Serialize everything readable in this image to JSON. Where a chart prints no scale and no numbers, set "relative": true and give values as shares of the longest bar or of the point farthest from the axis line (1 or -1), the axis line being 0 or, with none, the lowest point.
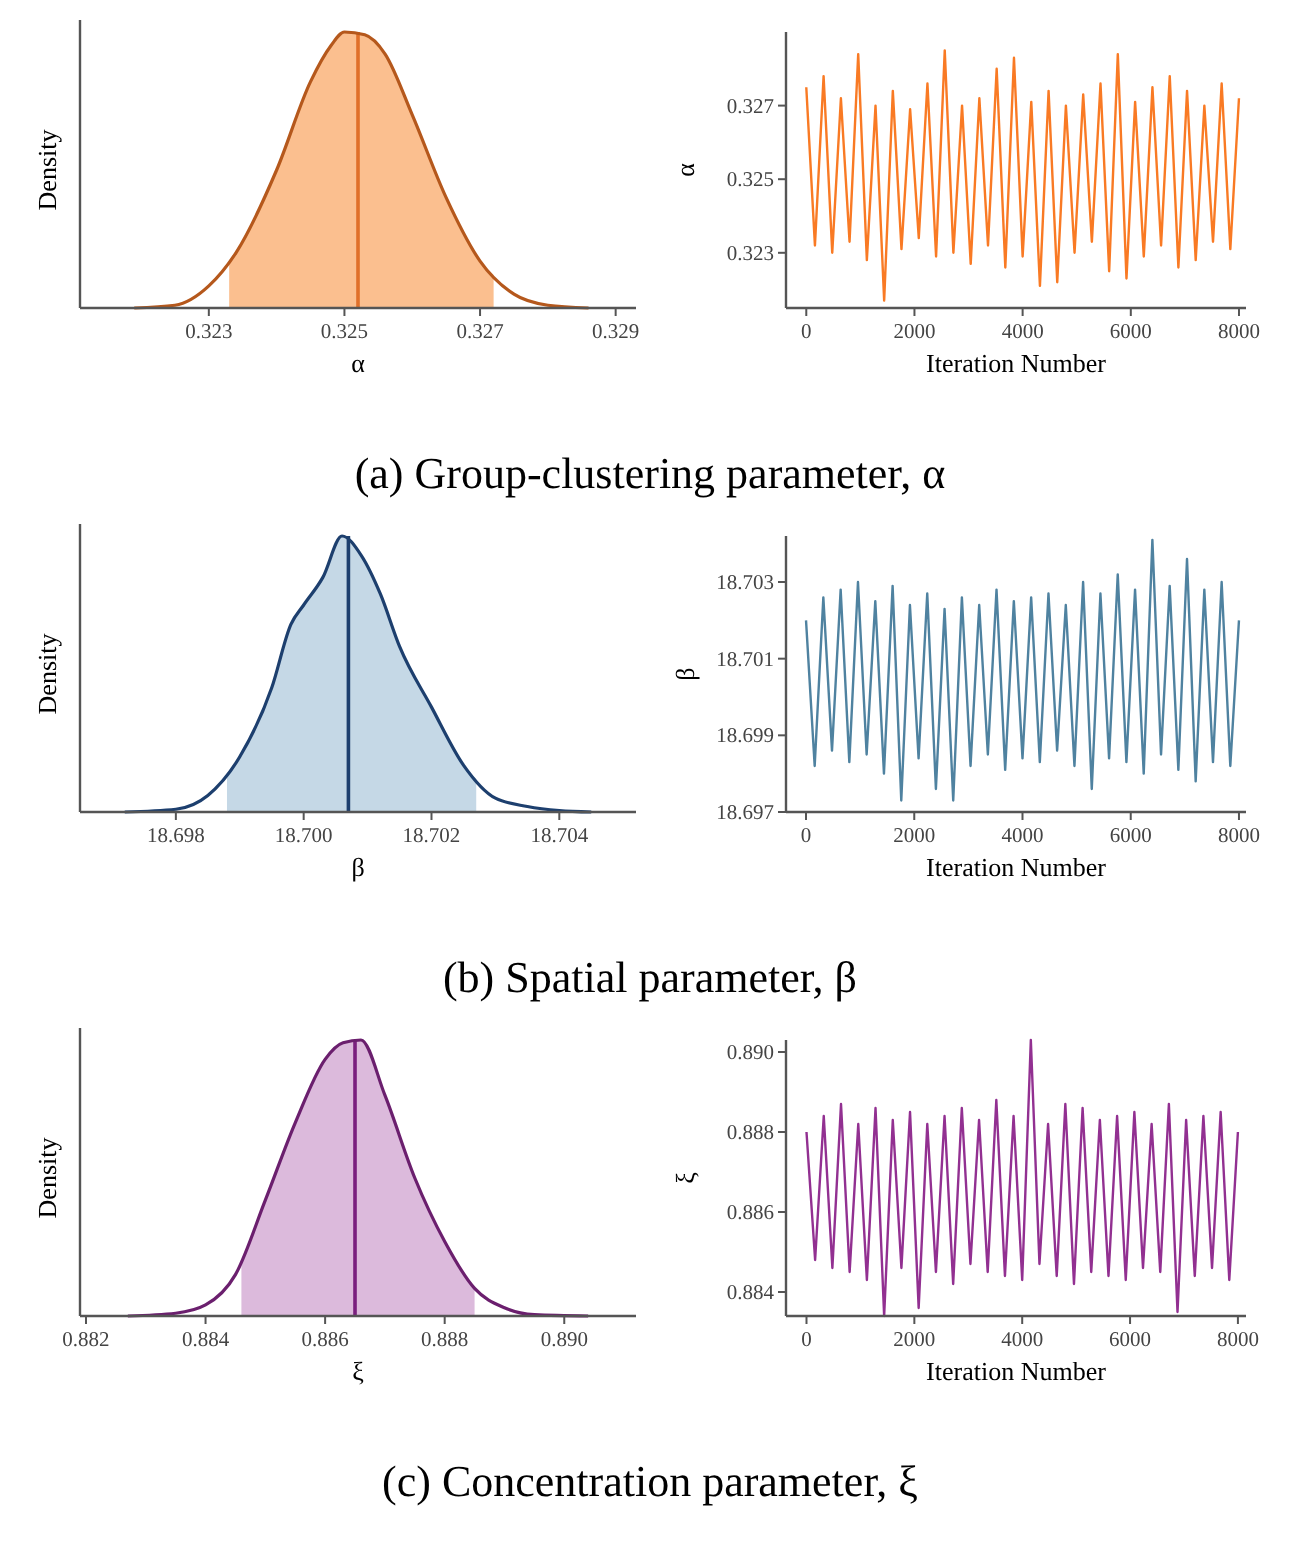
{
  "chart_data": [
    {
      "type": "area",
      "x": [
        0.3219,
        0.3225,
        0.323,
        0.3234,
        0.324,
        0.3245,
        0.3248,
        0.325,
        0.3253,
        0.3256,
        0.326,
        0.3265,
        0.327,
        0.3275,
        0.328,
        0.3286
      ],
      "series": [
        {
          "type": "area",
          "color": "#fbbf8f",
          "x": [
            0.3233,
            0.3234,
            0.324,
            0.3245,
            0.3248,
            0.325,
            0.3253,
            0.3256,
            0.326,
            0.3265,
            0.327,
            0.3272
          ],
          "values": [
            0.17,
            0.2,
            0.5,
            0.82,
            0.95,
            1,
            0.99,
            0.92,
            0.7,
            0.4,
            0.17,
            0.12
          ]
        },
        {
          "type": "line",
          "color": "#b5581c",
          "values": [
            0,
            0.01,
            0.08,
            0.2,
            0.5,
            0.82,
            0.95,
            1,
            0.99,
            0.92,
            0.7,
            0.4,
            0.17,
            0.05,
            0.01,
            0
          ]
        }
      ],
      "relative": true,
      "xlim": [
        0.3211,
        0.3293
      ],
      "xticks": [
        0.323,
        0.325,
        0.327,
        0.329
      ],
      "xlabel": "α",
      "ylabel": "Density",
      "ref_lines": [
        {
          "axis": "x",
          "value": 0.3252,
          "color": "#e0702a"
        }
      ],
      "annotations": [
        "(a) Group-clustering parameter, α"
      ]
    },
    {
      "type": "line",
      "x": [
        0,
        160,
        320,
        480,
        640,
        800,
        960,
        1120,
        1280,
        1440,
        1600,
        1760,
        1920,
        2080,
        2240,
        2400,
        2560,
        2720,
        2880,
        3040,
        3200,
        3360,
        3520,
        3680,
        3840,
        4000,
        4160,
        4320,
        4480,
        4640,
        4800,
        4960,
        5120,
        5280,
        5440,
        5600,
        5760,
        5920,
        6080,
        6240,
        6400,
        6560,
        6720,
        6880,
        7040,
        7200,
        7360,
        7520,
        7680,
        7840,
        8000
      ],
      "series": [
        {
          "color": "#f97a24",
          "values": [
            0.3275,
            0.3232,
            0.3278,
            0.323,
            0.3272,
            0.3233,
            0.3284,
            0.3228,
            0.327,
            0.3217,
            0.3274,
            0.3231,
            0.3269,
            0.3234,
            0.3276,
            0.3229,
            0.3285,
            0.323,
            0.327,
            0.3227,
            0.3272,
            0.3232,
            0.328,
            0.3226,
            0.3283,
            0.3229,
            0.3271,
            0.3221,
            0.3274,
            0.3222,
            0.327,
            0.323,
            0.3273,
            0.3233,
            0.3276,
            0.3225,
            0.3284,
            0.3223,
            0.3271,
            0.3229,
            0.3275,
            0.3232,
            0.3278,
            0.3226,
            0.3274,
            0.3228,
            0.327,
            0.3233,
            0.3276,
            0.3231,
            0.3272
          ]
        }
      ],
      "xlim": [
        -375,
        8130
      ],
      "xticks": [
        0,
        2000,
        4000,
        6000,
        8000
      ],
      "ylim": [
        0.3215,
        0.329
      ],
      "yticks": [
        0.323,
        0.325,
        0.327
      ],
      "xlabel": "Iteration Number",
      "ylabel": "α"
    },
    {
      "type": "area",
      "x": [
        18.6972,
        18.698,
        18.6985,
        18.699,
        18.6995,
        18.6998,
        18.7,
        18.7003,
        18.7006,
        18.7009,
        18.7012,
        18.7015,
        18.702,
        18.7025,
        18.703,
        18.7035,
        18.704,
        18.7045
      ],
      "series": [
        {
          "type": "area",
          "color": "#c5d8e6",
          "x": [
            18.6988,
            18.699,
            18.6995,
            18.6998,
            18.7,
            18.7003,
            18.7006,
            18.7009,
            18.7012,
            18.7015,
            18.702,
            18.7025,
            18.7027
          ],
          "values": [
            0.14,
            0.2,
            0.45,
            0.68,
            0.75,
            0.85,
            1,
            0.93,
            0.79,
            0.6,
            0.38,
            0.17,
            0.12
          ]
        },
        {
          "type": "line",
          "color": "#1d3f6e",
          "values": [
            0,
            0.01,
            0.06,
            0.2,
            0.45,
            0.68,
            0.75,
            0.85,
            1,
            0.93,
            0.79,
            0.6,
            0.38,
            0.17,
            0.05,
            0.02,
            0.005,
            0
          ]
        }
      ],
      "relative": true,
      "xlim": [
        18.6965,
        18.7052
      ],
      "xticks": [
        18.698,
        {
          "value": 18.7,
          "label": "18.700"
        },
        18.702,
        18.704
      ],
      "xlabel": "β",
      "ylabel": "Density",
      "ref_lines": [
        {
          "axis": "x",
          "value": 18.7007,
          "color": "#1d3f6e"
        }
      ],
      "annotations": [
        "(b) Spatial parameter, β"
      ]
    },
    {
      "type": "line",
      "x": [
        0,
        160,
        320,
        480,
        640,
        800,
        960,
        1120,
        1280,
        1440,
        1600,
        1760,
        1920,
        2080,
        2240,
        2400,
        2560,
        2720,
        2880,
        3040,
        3200,
        3360,
        3520,
        3680,
        3840,
        4000,
        4160,
        4320,
        4480,
        4640,
        4800,
        4960,
        5120,
        5280,
        5440,
        5600,
        5760,
        5920,
        6080,
        6240,
        6400,
        6560,
        6720,
        6880,
        7040,
        7200,
        7360,
        7520,
        7680,
        7840,
        8000
      ],
      "series": [
        {
          "color": "#4f82a0",
          "values": [
            18.702,
            18.6982,
            18.7026,
            18.6986,
            18.7028,
            18.6983,
            18.703,
            18.6985,
            18.7025,
            18.698,
            18.7029,
            18.6973,
            18.7024,
            18.6984,
            18.7027,
            18.6976,
            18.7023,
            18.6973,
            18.7026,
            18.6982,
            18.7024,
            18.6985,
            18.7028,
            18.6981,
            18.7025,
            18.6984,
            18.7026,
            18.6983,
            18.7027,
            18.6986,
            18.7024,
            18.6982,
            18.703,
            18.6976,
            18.7027,
            18.6984,
            18.7032,
            18.6983,
            18.7028,
            18.698,
            18.7041,
            18.6985,
            18.7029,
            18.6981,
            18.7036,
            18.6978,
            18.7028,
            18.6983,
            18.703,
            18.6982,
            18.702
          ]
        }
      ],
      "xlim": [
        -370,
        8130
      ],
      "xticks": [
        0,
        2000,
        4000,
        6000,
        8000
      ],
      "ylim": [
        18.697,
        18.7042
      ],
      "yticks": [
        18.697,
        18.699,
        18.701,
        18.703
      ],
      "xlabel": "Iteration Number",
      "ylabel": "β"
    },
    {
      "type": "area",
      "x": [
        0.8827,
        0.8835,
        0.884,
        0.8845,
        0.885,
        0.8855,
        0.886,
        0.8863,
        0.8866,
        0.887,
        0.8875,
        0.888,
        0.8885,
        0.889,
        0.8895,
        0.8904
      ],
      "series": [
        {
          "type": "area",
          "color": "#dcbadc",
          "x": [
            0.8846,
            0.885,
            0.8855,
            0.886,
            0.8863,
            0.8866,
            0.887,
            0.8875,
            0.888,
            0.8885
          ],
          "values": [
            0.19,
            0.42,
            0.7,
            0.93,
            0.99,
            1,
            0.8,
            0.5,
            0.27,
            0.1
          ]
        },
        {
          "type": "line",
          "color": "#6b1f6e",
          "values": [
            0,
            0.01,
            0.04,
            0.15,
            0.42,
            0.7,
            0.93,
            0.99,
            1,
            0.8,
            0.5,
            0.27,
            0.1,
            0.03,
            0.005,
            0
          ]
        }
      ],
      "relative": true,
      "xlim": [
        0.8819,
        0.8912
      ],
      "xticks": [
        0.882,
        0.884,
        0.886,
        0.888,
        {
          "value": 0.89,
          "label": "0.890"
        }
      ],
      "xlabel": "ξ",
      "ylabel": "Density",
      "ref_lines": [
        {
          "axis": "x",
          "value": 0.8865,
          "color": "#7a1f7e"
        }
      ],
      "annotations": [
        "(c) Concentration parameter, ξ"
      ]
    },
    {
      "type": "line",
      "x": [
        0,
        160,
        320,
        480,
        640,
        800,
        960,
        1120,
        1280,
        1440,
        1600,
        1760,
        1920,
        2080,
        2240,
        2400,
        2560,
        2720,
        2880,
        3040,
        3200,
        3360,
        3520,
        3680,
        3840,
        4000,
        4160,
        4320,
        4480,
        4640,
        4800,
        4960,
        5120,
        5280,
        5440,
        5600,
        5760,
        5920,
        6080,
        6240,
        6400,
        6560,
        6720,
        6880,
        7040,
        7200,
        7360,
        7520,
        7680,
        7840,
        8000
      ],
      "series": [
        {
          "color": "#923091",
          "values": [
            0.888,
            0.8848,
            0.8884,
            0.8846,
            0.8887,
            0.8845,
            0.8882,
            0.8843,
            0.8886,
            0.8834,
            0.8883,
            0.8846,
            0.8885,
            0.8836,
            0.8882,
            0.8845,
            0.8884,
            0.8842,
            0.8886,
            0.8847,
            0.8883,
            0.8845,
            0.8888,
            0.8844,
            0.8884,
            0.8843,
            0.8903,
            0.8847,
            0.8882,
            0.8844,
            0.8887,
            0.8842,
            0.8886,
            0.8845,
            0.8883,
            0.8844,
            0.8884,
            0.8843,
            0.8885,
            0.8846,
            0.8882,
            0.8845,
            0.8887,
            0.8835,
            0.8883,
            0.8844,
            0.8884,
            0.8846,
            0.8885,
            0.8843,
            0.888
          ]
        }
      ],
      "xlim": [
        -380,
        8150
      ],
      "xticks": [
        0,
        2000,
        4000,
        6000,
        8000
      ],
      "ylim": [
        0.8834,
        0.8903
      ],
      "yticks": [
        0.884,
        0.886,
        0.888,
        {
          "value": 0.89,
          "label": "0.890"
        }
      ],
      "xlabel": "Iteration Number",
      "ylabel": "ξ"
    }
  ]
}
